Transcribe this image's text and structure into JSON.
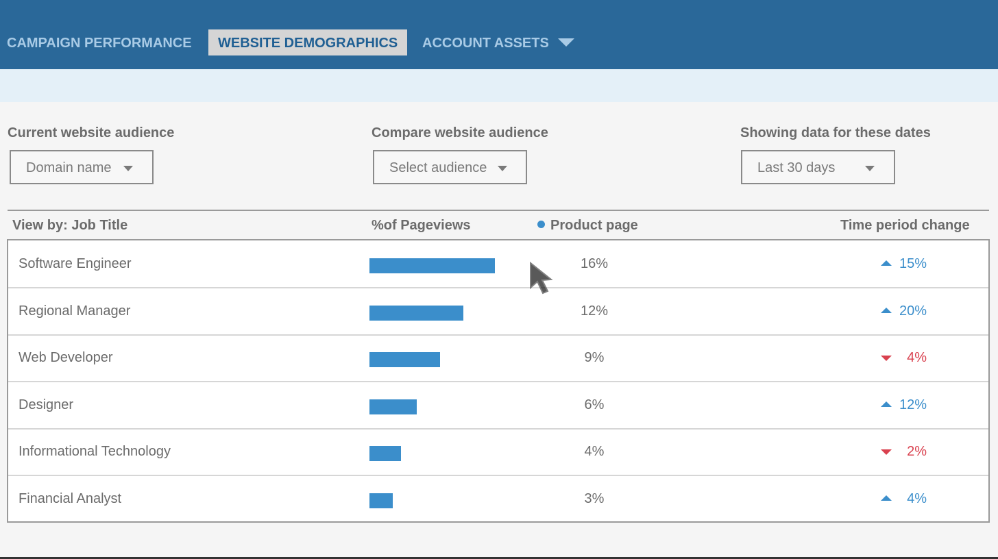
{
  "nav": {
    "tabs": [
      {
        "label": "CAMPAIGN PERFORMANCE",
        "active": false
      },
      {
        "label": "WEBSITE DEMOGRAPHICS",
        "active": true
      },
      {
        "label": "ACCOUNT ASSETS",
        "active": false,
        "has_dropdown": true
      }
    ]
  },
  "filters": {
    "current": {
      "label": "Current website audience",
      "value": "Domain name"
    },
    "compare": {
      "label": "Compare website audience",
      "value": "Select audience"
    },
    "dates": {
      "label": "Showing data for these dates",
      "value": "Last 30 days"
    }
  },
  "table": {
    "headers": {
      "view_by": "View by:  Job Title",
      "pageviews": "%of Pageviews",
      "product_page": "Product page",
      "time_change": "Time period change"
    },
    "rows": [
      {
        "title": "Software Engineer",
        "percent": "16%",
        "percent_value": 16,
        "change": "15%",
        "direction": "up"
      },
      {
        "title": "Regional Manager",
        "percent": "12%",
        "percent_value": 12,
        "change": "20%",
        "direction": "up"
      },
      {
        "title": "Web Developer",
        "percent": "9%",
        "percent_value": 9,
        "change": "4%",
        "direction": "down"
      },
      {
        "title": "Designer",
        "percent": "6%",
        "percent_value": 6,
        "change": "12%",
        "direction": "up"
      },
      {
        "title": "Informational Technology",
        "percent": "4%",
        "percent_value": 4,
        "change": "2%",
        "direction": "down"
      },
      {
        "title": "Financial Analyst",
        "percent": "3%",
        "percent_value": 3,
        "change": "4%",
        "direction": "up"
      }
    ]
  },
  "colors": {
    "nav_bg": "#2a6899",
    "accent": "#3b8ecb",
    "up": "#3b8ecb",
    "down": "#d9414f"
  }
}
